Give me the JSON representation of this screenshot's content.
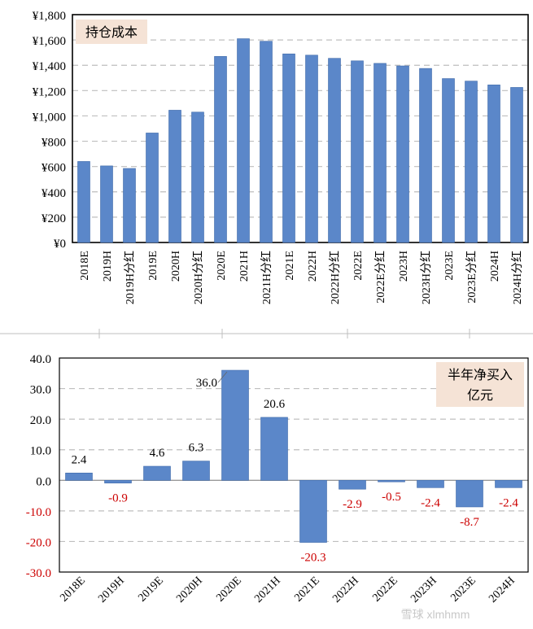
{
  "colors": {
    "bar": "#5b87c9",
    "bar_edge": "#3f6aaa",
    "negative_text": "#cc0000",
    "note_bg": "#f5e3d6",
    "grid": "#bfbfbf"
  },
  "chart_data": [
    {
      "type": "bar",
      "title": "持仓成本",
      "xlabel": "",
      "ylabel": "",
      "ylim": [
        0,
        1800
      ],
      "yticks": [
        "¥1,800",
        "¥1,600",
        "¥1,400",
        "¥1,200",
        "¥1,000",
        "¥800",
        "¥600",
        "¥400",
        "¥200",
        "¥0"
      ],
      "categories": [
        "2018E",
        "2019H",
        "2019H分红",
        "2019E",
        "2020H",
        "2020H分红",
        "2020E",
        "2021H",
        "2021H分红",
        "2021E",
        "2022H",
        "2022H分红",
        "2022E",
        "2022E分红",
        "2023H",
        "2023H分红",
        "2023E",
        "2023E分红",
        "2024H",
        "2024H分红"
      ],
      "values": [
        640,
        605,
        585,
        865,
        1045,
        1030,
        1470,
        1610,
        1590,
        1490,
        1480,
        1455,
        1435,
        1415,
        1395,
        1375,
        1295,
        1275,
        1245,
        1225
      ],
      "grid": true
    },
    {
      "type": "bar",
      "title": "半年净买入",
      "subtitle": "亿元",
      "xlabel": "",
      "ylabel": "",
      "ylim": [
        -30,
        40
      ],
      "yticks": [
        "40.0",
        "30.0",
        "20.0",
        "10.0",
        "0.0",
        "-10.0",
        "-20.0",
        "-30.0"
      ],
      "categories": [
        "2018E",
        "2019H",
        "2019E",
        "2020H",
        "2020E",
        "2021H",
        "2021E",
        "2022H",
        "2022E",
        "2023H",
        "2023E",
        "2024H"
      ],
      "values": [
        2.4,
        -0.9,
        4.6,
        6.3,
        36.0,
        20.6,
        -20.3,
        -2.9,
        -0.5,
        -2.4,
        -8.7,
        -2.4
      ],
      "labels": [
        "2.4",
        "-0.9",
        "4.6",
        "6.3",
        "36.0",
        "20.6",
        "-20.3",
        "-2.9",
        "-0.5",
        "-2.4",
        "-8.7",
        "-2.4"
      ],
      "grid": true
    }
  ],
  "watermark": "雪球 xlmhmm"
}
